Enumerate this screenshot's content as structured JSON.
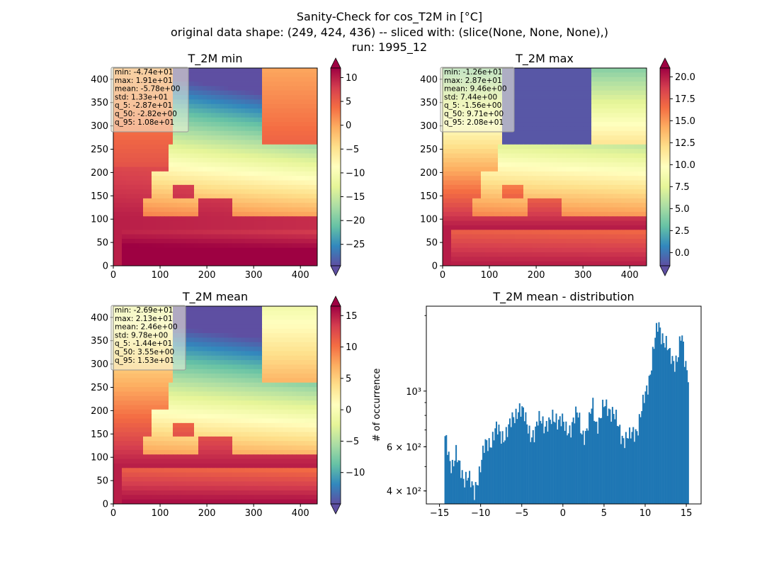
{
  "figure": {
    "title_lines": [
      "Sanity-Check for cos_T2M in [°C]",
      "original data shape: (249, 424, 436) -- sliced with: (slice(None, None, None),)",
      "run: 1995_12"
    ]
  },
  "colors": {
    "spectral_r": [
      "#5e4fa2",
      "#3288bd",
      "#66c2a5",
      "#abdda4",
      "#e6f598",
      "#ffffbf",
      "#fee08b",
      "#fdae61",
      "#f46d43",
      "#d53e4f",
      "#9e0142"
    ],
    "bar": "#1f77b4",
    "stats_box_bg": "#f5f5dc"
  },
  "chart_data": [
    {
      "type": "heatmap",
      "title": "T_2M min",
      "colormap": "Spectral_r",
      "xlim": [
        0,
        436
      ],
      "ylim": [
        0,
        424
      ],
      "x_ticks": [
        0,
        100,
        200,
        300,
        400
      ],
      "y_ticks": [
        0,
        50,
        100,
        150,
        200,
        250,
        300,
        350,
        400
      ],
      "colorbar": {
        "min": -29.5,
        "max": 12.0,
        "ticks": [
          10,
          5,
          0,
          -5,
          -10,
          -15,
          -20,
          -25
        ],
        "tick_labels": [
          "10",
          "5",
          "0",
          "−5",
          "−10",
          "−15",
          "−20",
          "−25"
        ],
        "extend": "both"
      },
      "stats_lines": [
        "min: -4.74e+01",
        "max: 1.91e+01",
        "mean: -5.78e+00",
        "std: 1.33e+01",
        "q_5: -2.87e+01",
        "q_50: -2.82e+00",
        "q_95: 1.08e+01"
      ],
      "field": "min"
    },
    {
      "type": "heatmap",
      "title": "T_2M max",
      "colormap": "Spectral_r",
      "xlim": [
        0,
        436
      ],
      "ylim": [
        0,
        424
      ],
      "x_ticks": [
        0,
        100,
        200,
        300,
        400
      ],
      "y_ticks": [
        0,
        50,
        100,
        150,
        200,
        250,
        300,
        350,
        400
      ],
      "colorbar": {
        "min": -1.5,
        "max": 21.0,
        "ticks": [
          20.0,
          17.5,
          15.0,
          12.5,
          10.0,
          7.5,
          5.0,
          2.5,
          0.0
        ],
        "tick_labels": [
          "20.0",
          "17.5",
          "15.0",
          "12.5",
          "10.0",
          "7.5",
          "5.0",
          "2.5",
          "0.0"
        ],
        "extend": "both"
      },
      "stats_lines": [
        "min: -1.26e+01",
        "max: 2.87e+01",
        "mean: 9.46e+00",
        "std: 7.44e+00",
        "q_5: -1.56e+00",
        "q_50: 9.71e+00",
        "q_95: 2.08e+01"
      ],
      "field": "max"
    },
    {
      "type": "heatmap",
      "title": "T_2M mean",
      "colormap": "Spectral_r",
      "xlim": [
        0,
        436
      ],
      "ylim": [
        0,
        424
      ],
      "x_ticks": [
        0,
        100,
        200,
        300,
        400
      ],
      "y_ticks": [
        0,
        50,
        100,
        150,
        200,
        250,
        300,
        350,
        400
      ],
      "colorbar": {
        "min": -15.0,
        "max": 16.5,
        "ticks": [
          15,
          10,
          5,
          0,
          -5,
          -10
        ],
        "tick_labels": [
          "15",
          "10",
          "5",
          "0",
          "−5",
          "−10"
        ],
        "extend": "both"
      },
      "stats_lines": [
        "min: -2.69e+01",
        "max: 2.13e+01",
        "mean: 2.46e+00",
        "std: 9.78e+00",
        "q_5: -1.44e+01",
        "q_50: 3.55e+00",
        "q_95: 1.53e+01"
      ],
      "field": "mean"
    },
    {
      "type": "bar",
      "title": "T_2M mean - distribution",
      "ylabel": "# of occurrence",
      "xlabel": "",
      "xlim": [
        -16.6,
        16.8
      ],
      "ylim": [
        355,
        2180
      ],
      "y_scale": "log",
      "x_ticks": [
        -15,
        -10,
        -5,
        0,
        5,
        10,
        15
      ],
      "x_tick_labels": [
        "−15",
        "−10",
        "−5",
        "0",
        "5",
        "10",
        "15"
      ],
      "y_major_ticks": [
        400,
        600,
        1000
      ],
      "y_major_tick_labels": [
        "4 × 10²",
        "6 × 10²",
        "10³"
      ],
      "bin_range": [
        -14.4,
        15.3
      ],
      "profile": [
        [
          -14.4,
          640
        ],
        [
          -14.1,
          600
        ],
        [
          -13.8,
          540
        ],
        [
          -13.4,
          520
        ],
        [
          -13.0,
          560
        ],
        [
          -12.7,
          500
        ],
        [
          -12.3,
          470
        ],
        [
          -12.0,
          460
        ],
        [
          -11.6,
          470
        ],
        [
          -11.2,
          420
        ],
        [
          -10.8,
          385
        ],
        [
          -10.5,
          440
        ],
        [
          -10.0,
          510
        ],
        [
          -9.5,
          590
        ],
        [
          -8.8,
          640
        ],
        [
          -8.2,
          700
        ],
        [
          -7.5,
          660
        ],
        [
          -7.0,
          690
        ],
        [
          -6.4,
          720
        ],
        [
          -5.9,
          790
        ],
        [
          -5.4,
          880
        ],
        [
          -5.0,
          830
        ],
        [
          -4.6,
          760
        ],
        [
          -4.0,
          700
        ],
        [
          -3.4,
          660
        ],
        [
          -3.0,
          750
        ],
        [
          -2.6,
          790
        ],
        [
          -2.1,
          740
        ],
        [
          -1.6,
          720
        ],
        [
          -1.2,
          780
        ],
        [
          -0.8,
          800
        ],
        [
          -0.2,
          760
        ],
        [
          0.3,
          690
        ],
        [
          0.8,
          720
        ],
        [
          1.2,
          760
        ],
        [
          1.8,
          800
        ],
        [
          2.3,
          700
        ],
        [
          2.8,
          680
        ],
        [
          3.2,
          740
        ],
        [
          3.6,
          890
        ],
        [
          4.0,
          760
        ],
        [
          4.5,
          760
        ],
        [
          5.0,
          860
        ],
        [
          5.5,
          880
        ],
        [
          6.0,
          830
        ],
        [
          6.6,
          730
        ],
        [
          7.1,
          680
        ],
        [
          7.6,
          650
        ],
        [
          8.1,
          640
        ],
        [
          8.6,
          700
        ],
        [
          9.1,
          720
        ],
        [
          9.6,
          820
        ],
        [
          10.1,
          1000
        ],
        [
          10.6,
          1200
        ],
        [
          11.1,
          1500
        ],
        [
          11.6,
          1850
        ],
        [
          12.0,
          1720
        ],
        [
          12.5,
          1550
        ],
        [
          13.0,
          1350
        ],
        [
          13.5,
          1330
        ],
        [
          14.0,
          1400
        ],
        [
          14.4,
          1650
        ],
        [
          14.8,
          1300
        ],
        [
          15.3,
          1200
        ]
      ]
    }
  ]
}
